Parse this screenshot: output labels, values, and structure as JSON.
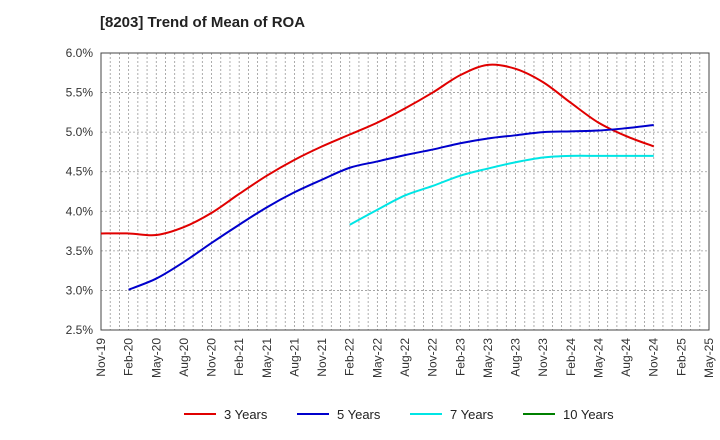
{
  "chart_data": {
    "type": "line",
    "title": "[8203]  Trend of Mean of ROA",
    "xlabel": "",
    "ylabel": "",
    "ylim": [
      2.5,
      6.0
    ],
    "y_ticks": [
      2.5,
      3.0,
      3.5,
      4.0,
      4.5,
      5.0,
      5.5,
      6.0
    ],
    "y_tick_format": "%",
    "categories": [
      "Nov-19",
      "Feb-20",
      "May-20",
      "Aug-20",
      "Nov-20",
      "Feb-21",
      "May-21",
      "Aug-21",
      "Nov-21",
      "Feb-22",
      "May-22",
      "Aug-22",
      "Nov-22",
      "Feb-23",
      "May-23",
      "Aug-23",
      "Nov-23",
      "Feb-24",
      "May-24",
      "Aug-24",
      "Nov-24",
      "Feb-25",
      "May-25"
    ],
    "grid": true,
    "legend_position": "bottom",
    "series": [
      {
        "name": "3 Years",
        "color": "#e00000",
        "values": [
          3.72,
          3.72,
          3.7,
          3.8,
          3.98,
          4.22,
          4.45,
          4.65,
          4.82,
          4.97,
          5.12,
          5.3,
          5.5,
          5.72,
          5.85,
          5.8,
          5.63,
          5.37,
          5.12,
          4.95,
          4.82,
          null,
          null
        ]
      },
      {
        "name": "5 Years",
        "color": "#0000cc",
        "values": [
          null,
          3.01,
          3.15,
          3.36,
          3.6,
          3.83,
          4.05,
          4.24,
          4.4,
          4.55,
          4.63,
          4.71,
          4.78,
          4.86,
          4.92,
          4.96,
          5.0,
          5.01,
          5.02,
          5.05,
          5.09,
          null,
          null
        ]
      },
      {
        "name": "7 Years",
        "color": "#00e5e5",
        "values": [
          null,
          null,
          null,
          null,
          null,
          null,
          null,
          null,
          null,
          3.83,
          4.02,
          4.2,
          4.32,
          4.45,
          4.54,
          4.62,
          4.68,
          4.7,
          4.7,
          4.7,
          4.7,
          null,
          null
        ]
      },
      {
        "name": "10 Years",
        "color": "#008000",
        "values": [
          null,
          null,
          null,
          null,
          null,
          null,
          null,
          null,
          null,
          null,
          null,
          null,
          null,
          null,
          null,
          null,
          null,
          null,
          null,
          null,
          null,
          null,
          null
        ]
      }
    ]
  }
}
